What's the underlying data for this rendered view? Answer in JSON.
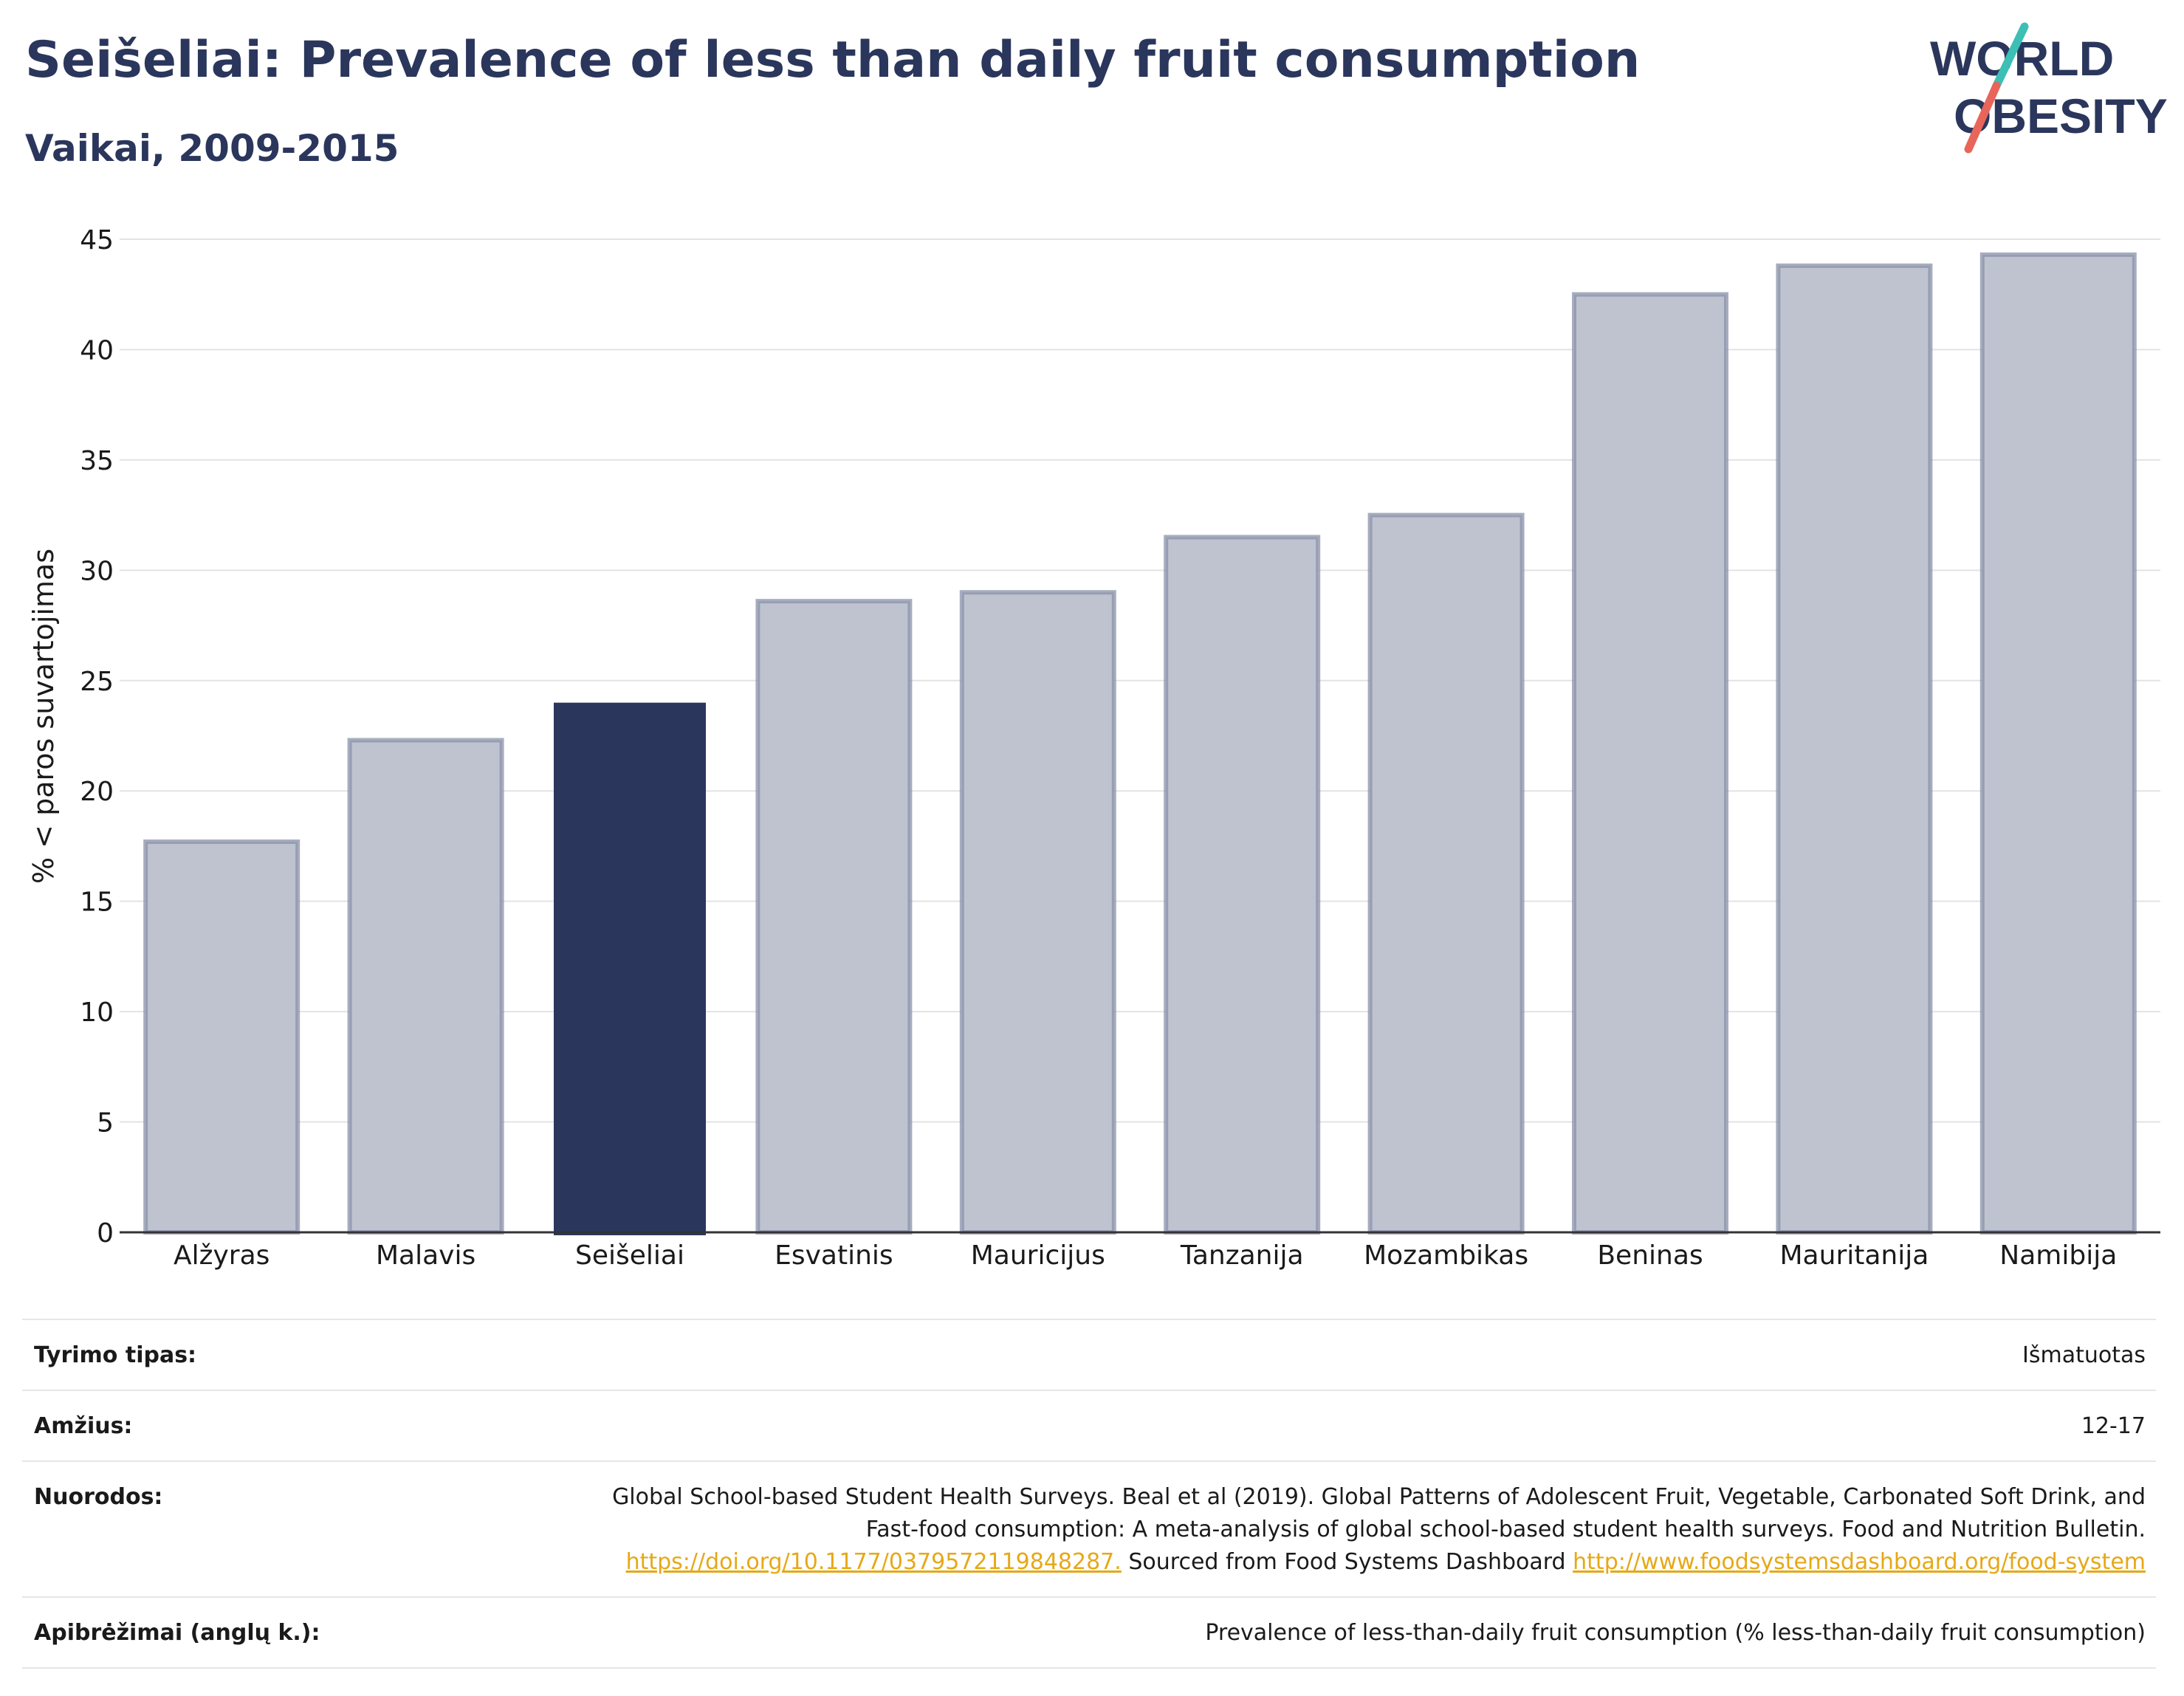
{
  "header": {
    "title": "Seišeliai: Prevalence of less than daily fruit consumption",
    "subtitle": "Vaikai, 2009-2015"
  },
  "logo": {
    "line1": "WORLD",
    "line2": "OBESITY"
  },
  "colors": {
    "highlight": "#2b365c",
    "bar": "#bfc3cf",
    "bar_edge": "#8a91aa",
    "logo_teal": "#3cbfb5",
    "logo_coral": "#e8655a",
    "link": "#e6a817"
  },
  "chart_data": {
    "type": "bar",
    "categories": [
      "Alžyras",
      "Malavis",
      "Seišeliai",
      "Esvatinis",
      "Mauricijus",
      "Tanzanija",
      "Mozambikas",
      "Beninas",
      "Mauritanija",
      "Namibija"
    ],
    "values": [
      17.7,
      22.3,
      24.0,
      28.6,
      29.0,
      31.5,
      32.5,
      42.5,
      43.8,
      44.3
    ],
    "highlight": "Seišeliai",
    "ylabel": "% < paros suvartojimas",
    "xlabel": "",
    "ylim": [
      0,
      45
    ],
    "yticks": [
      0,
      5,
      10,
      15,
      20,
      25,
      30,
      35,
      40,
      45
    ],
    "grid": true
  },
  "meta": {
    "study_type_label": "Tyrimo tipas:",
    "study_type_value": "Išmatuotas",
    "age_label": "Amžius:",
    "age_value": "12-17",
    "refs_label": "Nuorodos:",
    "refs_text1": "Global School-based Student Health Surveys. Beal et al (2019). Global Patterns of Adolescent Fruit, Vegetable, Carbonated Soft Drink, and Fast-food consumption: A meta-analysis of global school-based student health surveys. Food and Nutrition Bulletin.",
    "refs_link1": "https://doi.org/10.1177/0379572119848287.",
    "refs_text2": "Sourced from Food Systems Dashboard",
    "refs_link2": "http://www.foodsystemsdashboard.org/food-system",
    "definitions_label": "Apibrėžimai (anglų k.):",
    "definitions_value": "Prevalence of less-than-daily fruit consumption (% less-than-daily fruit consumption)"
  }
}
